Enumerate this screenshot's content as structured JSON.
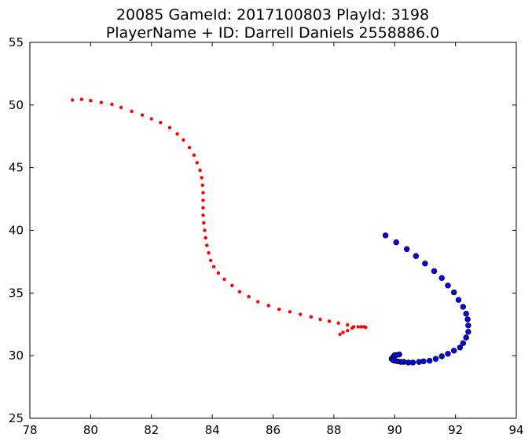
{
  "chart_data": {
    "type": "scatter",
    "title_line1": "20085 GameId: 2017100803 PlayId: 3198",
    "title_line2": "PlayerName + ID: Darrell Daniels 2558886.0",
    "xlabel": "",
    "ylabel": "",
    "xlim": [
      78,
      94
    ],
    "ylim": [
      25,
      55
    ],
    "grid": false,
    "x_ticks": [
      "78",
      "80",
      "82",
      "84",
      "86",
      "88",
      "90",
      "92",
      "94"
    ],
    "y_ticks": [
      "25",
      "30",
      "35",
      "40",
      "45",
      "50",
      "55"
    ],
    "series": [
      {
        "color": "#ff0000",
        "marker": "small-dot",
        "points": [
          [
            79.4,
            50.4
          ],
          [
            79.7,
            50.45
          ],
          [
            80.0,
            50.35
          ],
          [
            80.35,
            50.2
          ],
          [
            80.7,
            50.05
          ],
          [
            81.0,
            49.8
          ],
          [
            81.35,
            49.5
          ],
          [
            81.7,
            49.2
          ],
          [
            82.0,
            48.9
          ],
          [
            82.3,
            48.6
          ],
          [
            82.6,
            48.2
          ],
          [
            82.85,
            47.7
          ],
          [
            83.05,
            47.2
          ],
          [
            83.25,
            46.6
          ],
          [
            83.4,
            46.0
          ],
          [
            83.5,
            45.4
          ],
          [
            83.6,
            44.8
          ],
          [
            83.65,
            44.2
          ],
          [
            83.68,
            43.6
          ],
          [
            83.7,
            43.0
          ],
          [
            83.7,
            42.4
          ],
          [
            83.7,
            41.8
          ],
          [
            83.7,
            41.2
          ],
          [
            83.72,
            40.6
          ],
          [
            83.75,
            40.0
          ],
          [
            83.78,
            39.4
          ],
          [
            83.82,
            38.8
          ],
          [
            83.88,
            38.2
          ],
          [
            83.95,
            37.6
          ],
          [
            84.05,
            37.1
          ],
          [
            84.2,
            36.6
          ],
          [
            84.4,
            36.1
          ],
          [
            84.65,
            35.6
          ],
          [
            84.9,
            35.1
          ],
          [
            85.2,
            34.7
          ],
          [
            85.5,
            34.3
          ],
          [
            85.85,
            34.0
          ],
          [
            86.2,
            33.7
          ],
          [
            86.55,
            33.5
          ],
          [
            86.9,
            33.3
          ],
          [
            87.25,
            33.1
          ],
          [
            87.55,
            32.9
          ],
          [
            87.85,
            32.75
          ],
          [
            88.15,
            32.6
          ],
          [
            88.45,
            32.45
          ],
          [
            88.65,
            32.3
          ],
          [
            88.8,
            32.3
          ],
          [
            88.9,
            32.3
          ],
          [
            89.0,
            32.3
          ],
          [
            89.05,
            32.25
          ],
          [
            88.6,
            32.2
          ],
          [
            88.45,
            32.0
          ],
          [
            88.3,
            31.85
          ],
          [
            88.2,
            31.7
          ]
        ]
      },
      {
        "color": "#0000ff",
        "marker": "circle",
        "points": [
          [
            89.7,
            39.6
          ],
          [
            90.05,
            39.05
          ],
          [
            90.4,
            38.5
          ],
          [
            90.7,
            37.95
          ],
          [
            91.0,
            37.35
          ],
          [
            91.3,
            36.75
          ],
          [
            91.55,
            36.2
          ],
          [
            91.75,
            35.6
          ],
          [
            91.95,
            35.05
          ],
          [
            92.1,
            34.45
          ],
          [
            92.25,
            33.9
          ],
          [
            92.35,
            33.35
          ],
          [
            92.4,
            32.9
          ],
          [
            92.42,
            32.4
          ],
          [
            92.42,
            31.9
          ],
          [
            92.35,
            31.45
          ],
          [
            92.25,
            31.0
          ],
          [
            92.15,
            30.65
          ],
          [
            91.95,
            30.4
          ],
          [
            91.75,
            30.15
          ],
          [
            91.55,
            29.95
          ],
          [
            91.35,
            29.75
          ],
          [
            91.15,
            29.6
          ],
          [
            90.95,
            29.55
          ],
          [
            90.8,
            29.5
          ],
          [
            90.6,
            29.45
          ],
          [
            90.45,
            29.45
          ],
          [
            90.3,
            29.5
          ],
          [
            90.2,
            29.5
          ],
          [
            90.1,
            29.55
          ],
          [
            90.0,
            29.6
          ],
          [
            89.95,
            29.65
          ],
          [
            89.9,
            29.75
          ],
          [
            89.95,
            29.9
          ],
          [
            90.05,
            30.05
          ],
          [
            90.15,
            30.1
          ],
          [
            90.0,
            30.05
          ],
          [
            89.95,
            29.85
          ],
          [
            89.95,
            29.7
          ]
        ]
      }
    ]
  }
}
